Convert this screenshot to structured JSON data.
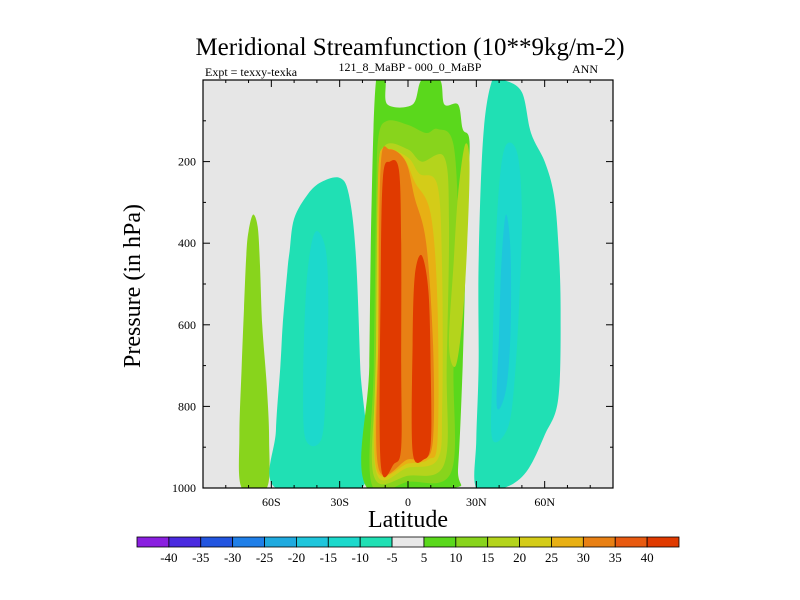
{
  "chart_data": {
    "type": "heatmap",
    "title": "Meridional Streamfunction (10**9kg/m-2)",
    "subtitle_left": "Expt = texxy-texka",
    "subtitle_center": "121_8_MaBP - 000_0_MaBP",
    "subtitle_right": "ANN",
    "xlabel": "Latitude",
    "ylabel": "Pressure (in hPa)",
    "xlim": [
      -90,
      90
    ],
    "ylim": [
      1000,
      0
    ],
    "x_ticks": [
      {
        "value": -60,
        "label": "60S"
      },
      {
        "value": -30,
        "label": "30S"
      },
      {
        "value": 0,
        "label": "0"
      },
      {
        "value": 30,
        "label": "30N"
      },
      {
        "value": 60,
        "label": "60N"
      }
    ],
    "y_ticks": [
      {
        "value": 200,
        "label": "200"
      },
      {
        "value": 400,
        "label": "400"
      },
      {
        "value": 600,
        "label": "600"
      },
      {
        "value": 800,
        "label": "800"
      },
      {
        "value": 1000,
        "label": "1000"
      }
    ],
    "background_color": "#e6e6e6",
    "colorbar": {
      "labels": [
        "-40",
        "-35",
        "-30",
        "-25",
        "-20",
        "-15",
        "-10",
        "-5",
        "5",
        "10",
        "15",
        "20",
        "25",
        "30",
        "35",
        "40"
      ],
      "colors": [
        "#8a1fe0",
        "#4a2ae0",
        "#2255e0",
        "#1f7fe8",
        "#1faadf",
        "#1fc6dc",
        "#1cd9cc",
        "#20e0b4",
        "#e8e8e8",
        "#5ad81c",
        "#88d41c",
        "#b4d41c",
        "#d4cc18",
        "#e8b014",
        "#e88014",
        "#e85a10",
        "#e03a00"
      ]
    },
    "contour_regions": [
      {
        "name": "sh-high-lat-cell",
        "level": 10,
        "points": [
          [
            -73,
            1000
          ],
          [
            -74,
            870
          ],
          [
            -73,
            700
          ],
          [
            -72,
            560
          ],
          [
            -71,
            430
          ],
          [
            -70,
            370
          ],
          [
            -68,
            330
          ],
          [
            -66,
            360
          ],
          [
            -65,
            450
          ],
          [
            -64,
            600
          ],
          [
            -62,
            750
          ],
          [
            -61,
            880
          ],
          [
            -62,
            1000
          ]
        ]
      },
      {
        "name": "sh-mid-lat-cell",
        "level": -5,
        "points": [
          [
            -58,
            1000
          ],
          [
            -58,
            860
          ],
          [
            -56,
            700
          ],
          [
            -55,
            600
          ],
          [
            -53,
            470
          ],
          [
            -52,
            420
          ],
          [
            -50,
            340
          ],
          [
            -44,
            280
          ],
          [
            -38,
            250
          ],
          [
            -30,
            240
          ],
          [
            -26,
            280
          ],
          [
            -23,
            420
          ],
          [
            -21,
            700
          ],
          [
            -20,
            1000
          ]
        ]
      },
      {
        "name": "sh-mid-lat-cell-core",
        "level": -10,
        "points": [
          [
            -45,
            880
          ],
          [
            -46,
            740
          ],
          [
            -45,
            540
          ],
          [
            -43,
            420
          ],
          [
            -40,
            370
          ],
          [
            -36,
            420
          ],
          [
            -35,
            560
          ],
          [
            -36,
            740
          ],
          [
            -38,
            880
          ]
        ]
      },
      {
        "name": "nh-mid-lat-cell",
        "level": -5,
        "points": [
          [
            30,
            1000
          ],
          [
            30,
            880
          ],
          [
            31,
            700
          ],
          [
            31,
            450
          ],
          [
            33,
            140
          ],
          [
            37,
            0
          ],
          [
            42,
            0
          ],
          [
            50,
            30
          ],
          [
            54,
            130
          ],
          [
            60,
            200
          ],
          [
            64,
            280
          ],
          [
            66,
            400
          ],
          [
            67,
            560
          ],
          [
            66,
            780
          ],
          [
            60,
            870
          ],
          [
            52,
            960
          ],
          [
            42,
            1000
          ]
        ]
      },
      {
        "name": "nh-mid-lat-cell-core",
        "level": -10,
        "points": [
          [
            37,
            880
          ],
          [
            37,
            720
          ],
          [
            38,
            480
          ],
          [
            40,
            260
          ],
          [
            43,
            160
          ],
          [
            48,
            180
          ],
          [
            50,
            320
          ],
          [
            49,
            520
          ],
          [
            47,
            720
          ],
          [
            44,
            850
          ]
        ]
      },
      {
        "name": "nh-mid-lat-cell-max",
        "level": -15,
        "points": [
          [
            39,
            800
          ],
          [
            40,
            620
          ],
          [
            41,
            450
          ],
          [
            43,
            330
          ],
          [
            45,
            420
          ],
          [
            45,
            620
          ],
          [
            43,
            760
          ]
        ]
      },
      {
        "name": "hadley-cells",
        "level": 5,
        "points": [
          [
            -18,
            1000
          ],
          [
            -17,
            700
          ],
          [
            -16,
            300
          ],
          [
            -14,
            0
          ],
          [
            -10,
            0
          ],
          [
            -9,
            60
          ],
          [
            2,
            60
          ],
          [
            6,
            0
          ],
          [
            14,
            0
          ],
          [
            16,
            60
          ],
          [
            22,
            60
          ],
          [
            24,
            120
          ],
          [
            27,
            150
          ],
          [
            26,
            300
          ],
          [
            24,
            700
          ],
          [
            22,
            950
          ],
          [
            20,
            1000
          ]
        ]
      },
      {
        "name": "hadley-cells-10",
        "level": 10,
        "points": [
          [
            -16,
            990
          ],
          [
            -15,
            700
          ],
          [
            -14,
            300
          ],
          [
            -13,
            140
          ],
          [
            -9,
            100
          ],
          [
            0,
            110
          ],
          [
            8,
            130
          ],
          [
            13,
            120
          ],
          [
            20,
            160
          ],
          [
            22,
            400
          ],
          [
            20,
            700
          ],
          [
            19,
            960
          ],
          [
            0,
            985
          ]
        ]
      },
      {
        "name": "hadley-cells-15",
        "level": 15,
        "points": [
          [
            -15,
            970
          ],
          [
            -14,
            700
          ],
          [
            -13,
            250
          ],
          [
            -10,
            160
          ],
          [
            0,
            170
          ],
          [
            6,
            200
          ],
          [
            16,
            190
          ],
          [
            18,
            350
          ],
          [
            17,
            700
          ],
          [
            16,
            940
          ],
          [
            0,
            970
          ]
        ]
      },
      {
        "name": "hadley-cells-20",
        "level": 20,
        "points": [
          [
            -14,
            960
          ],
          [
            -14,
            640
          ],
          [
            -13,
            230
          ],
          [
            -10,
            170
          ],
          [
            0,
            190
          ],
          [
            5,
            230
          ],
          [
            13,
            260
          ],
          [
            15,
            480
          ],
          [
            15,
            800
          ],
          [
            13,
            930
          ],
          [
            0,
            950
          ]
        ]
      },
      {
        "name": "hadley-cells-25",
        "level": 25,
        "points": [
          [
            -14,
            950
          ],
          [
            -13,
            620
          ],
          [
            -13,
            220
          ],
          [
            -9,
            170
          ],
          [
            -2,
            190
          ],
          [
            3,
            250
          ],
          [
            10,
            330
          ],
          [
            13,
            560
          ],
          [
            13,
            880
          ],
          [
            9,
            930
          ],
          [
            0,
            940
          ]
        ]
      },
      {
        "name": "hadley-cells-30",
        "level": 30,
        "points": [
          [
            -13,
            950
          ],
          [
            -13,
            620
          ],
          [
            -12,
            210
          ],
          [
            -8,
            170
          ],
          [
            -1,
            200
          ],
          [
            3,
            290
          ],
          [
            8,
            400
          ],
          [
            11,
            650
          ],
          [
            11,
            880
          ],
          [
            7,
            930
          ],
          [
            0,
            930
          ]
        ]
      },
      {
        "name": "sh-hadley-core",
        "level": 40,
        "points": [
          [
            -12,
            940
          ],
          [
            -12,
            500
          ],
          [
            -11,
            240
          ],
          [
            -8,
            200
          ],
          [
            -4,
            220
          ],
          [
            -3,
            400
          ],
          [
            -3,
            700
          ],
          [
            -3,
            900
          ],
          [
            -6,
            940
          ]
        ]
      },
      {
        "name": "nh-hadley-core",
        "level": 40,
        "points": [
          [
            2,
            910
          ],
          [
            2,
            650
          ],
          [
            3,
            480
          ],
          [
            6,
            430
          ],
          [
            9,
            520
          ],
          [
            10,
            720
          ],
          [
            10,
            890
          ],
          [
            7,
            930
          ]
        ]
      },
      {
        "name": "nh-subtropical-tongue",
        "level": 15,
        "points": [
          [
            18,
            650
          ],
          [
            20,
            450
          ],
          [
            22,
            280
          ],
          [
            25,
            160
          ],
          [
            27,
            200
          ],
          [
            26,
            400
          ],
          [
            24,
            580
          ],
          [
            21,
            700
          ]
        ]
      }
    ]
  }
}
